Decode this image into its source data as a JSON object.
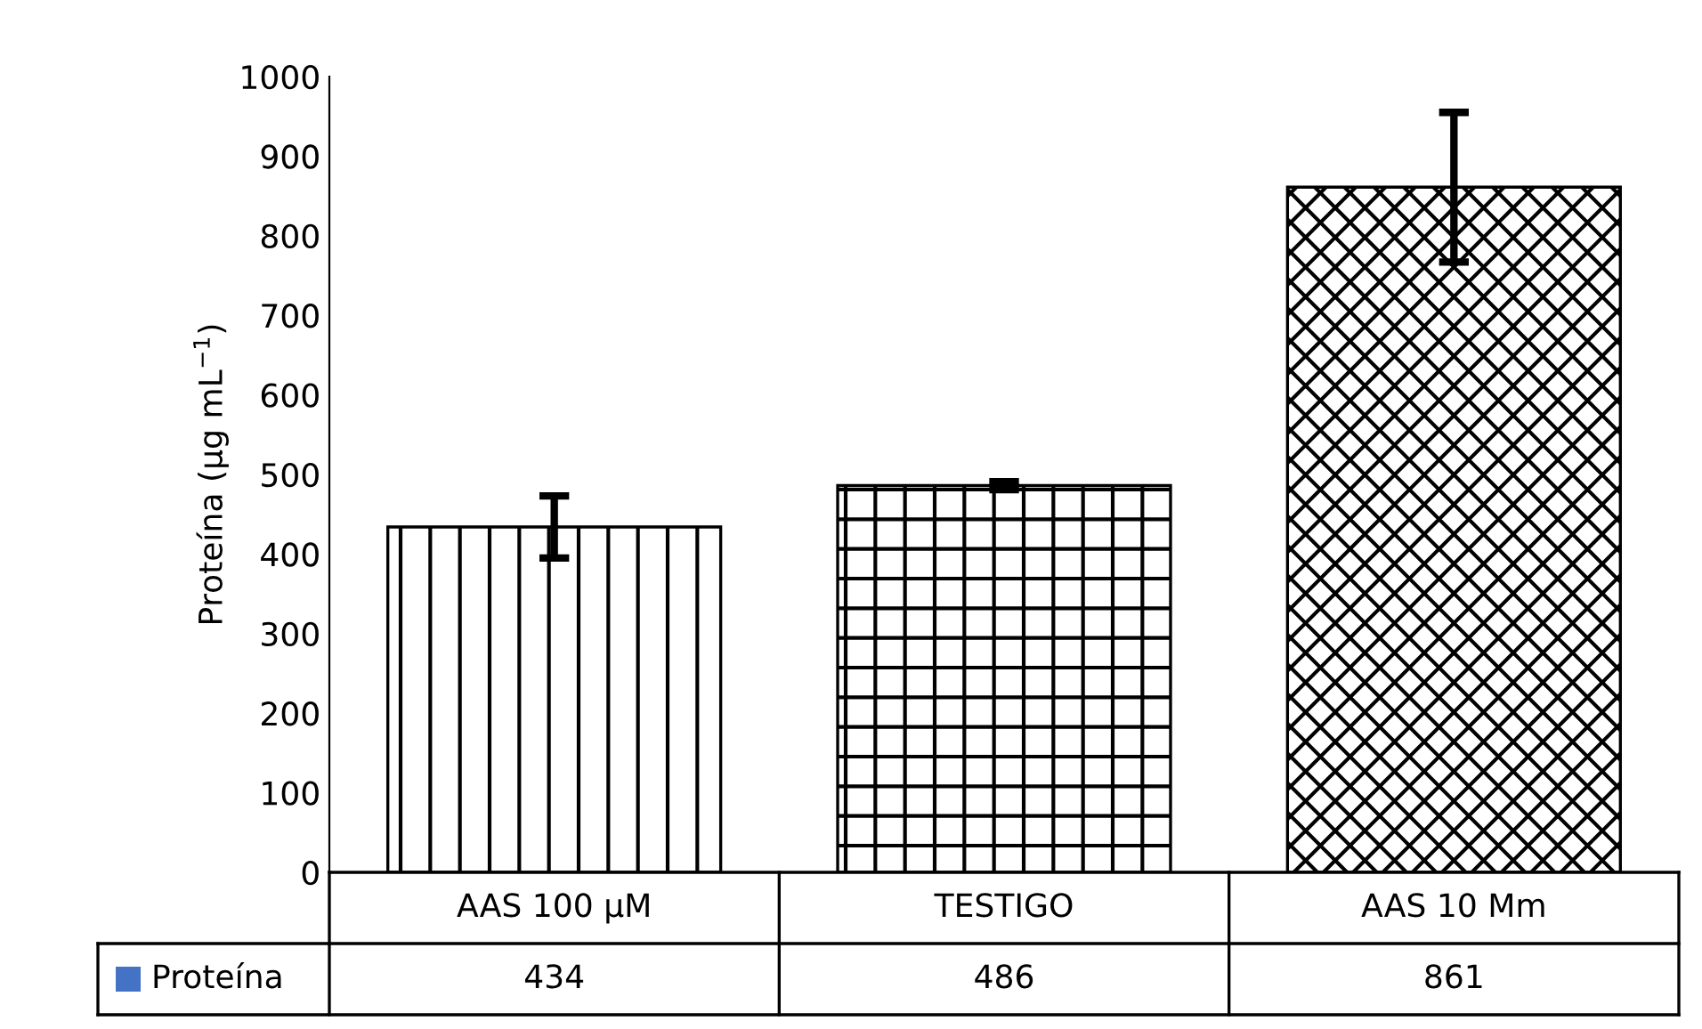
{
  "chart_data": {
    "type": "bar",
    "ylabel": "Proteína (µg mL$^{−1}$)",
    "categories": [
      "AAS 100 µM",
      "TESTIGO",
      "AAS 10 Mm"
    ],
    "series": [
      {
        "name": "Proteína",
        "color": "#000000",
        "values": [
          434,
          486,
          861
        ],
        "errors": [
          39,
          5,
          94
        ]
      }
    ],
    "ylim": [
      0,
      1000
    ],
    "yticks": [
      0,
      100,
      200,
      300,
      400,
      500,
      600,
      700,
      800,
      900,
      1000
    ],
    "data_labels": true,
    "grid": false,
    "legend": false
  }
}
